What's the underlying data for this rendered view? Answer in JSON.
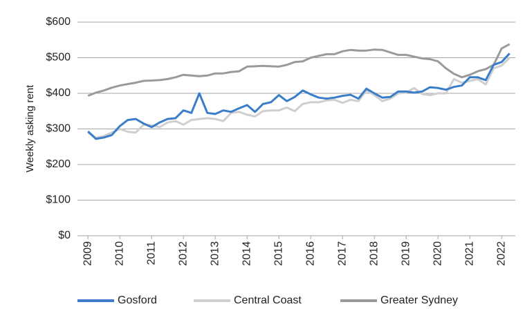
{
  "chart_data": {
    "type": "line",
    "y_label": "Weekly asking rent",
    "x": [
      2009,
      2009.25,
      2009.5,
      2009.75,
      2010,
      2010.25,
      2010.5,
      2010.75,
      2011,
      2011.25,
      2011.5,
      2011.75,
      2012,
      2012.25,
      2012.5,
      2012.75,
      2013,
      2013.25,
      2013.5,
      2013.75,
      2014,
      2014.25,
      2014.5,
      2014.75,
      2015,
      2015.25,
      2015.5,
      2015.75,
      2016,
      2016.25,
      2016.5,
      2016.75,
      2017,
      2017.25,
      2017.5,
      2017.75,
      2018,
      2018.25,
      2018.5,
      2018.75,
      2019,
      2019.25,
      2019.5,
      2019.75,
      2020,
      2020.25,
      2020.5,
      2020.75,
      2021,
      2021.25,
      2021.5,
      2021.75,
      2022,
      2022.25
    ],
    "series": [
      {
        "name": "Gosford",
        "color": "#3a7dc9",
        "values": [
          293,
          272,
          276,
          283,
          308,
          325,
          328,
          315,
          305,
          318,
          328,
          330,
          352,
          345,
          400,
          345,
          342,
          352,
          348,
          358,
          367,
          348,
          370,
          375,
          395,
          378,
          390,
          408,
          397,
          388,
          385,
          388,
          393,
          396,
          385,
          413,
          400,
          388,
          390,
          405,
          405,
          402,
          405,
          417,
          415,
          410,
          418,
          422,
          445,
          445,
          437,
          480,
          488,
          512
        ]
      },
      {
        "name": "Central Coast",
        "color": "#cfcfcf",
        "values": [
          290,
          275,
          280,
          290,
          300,
          292,
          290,
          312,
          310,
          305,
          318,
          322,
          312,
          325,
          328,
          330,
          328,
          322,
          345,
          348,
          340,
          335,
          350,
          352,
          352,
          360,
          350,
          370,
          375,
          375,
          380,
          382,
          373,
          382,
          378,
          408,
          395,
          378,
          385,
          400,
          402,
          415,
          398,
          395,
          400,
          400,
          440,
          430,
          435,
          440,
          425,
          470,
          478,
          500
        ]
      },
      {
        "name": "Greater Sydney",
        "color": "#9a9a9a",
        "values": [
          393,
          402,
          408,
          416,
          422,
          426,
          430,
          435,
          436,
          437,
          440,
          445,
          452,
          450,
          448,
          450,
          456,
          456,
          460,
          462,
          475,
          476,
          477,
          476,
          475,
          480,
          488,
          490,
          500,
          505,
          510,
          510,
          518,
          522,
          520,
          520,
          523,
          522,
          515,
          508,
          508,
          503,
          498,
          496,
          490,
          470,
          455,
          445,
          452,
          462,
          468,
          480,
          526,
          538
        ]
      }
    ],
    "xlim": [
      2008.67,
      2022.43
    ],
    "xticks": [
      2009,
      2010,
      2011,
      2012,
      2013,
      2014,
      2015,
      2016,
      2017,
      2018,
      2019,
      2020,
      2021,
      2022
    ],
    "ylim": [
      0,
      600
    ],
    "yticks": [
      {
        "value": 0,
        "label": "$0"
      },
      {
        "value": 100,
        "label": "$100"
      },
      {
        "value": 200,
        "label": "$200"
      },
      {
        "value": 300,
        "label": "$300"
      },
      {
        "value": 400,
        "label": "$400"
      },
      {
        "value": 500,
        "label": "$500"
      },
      {
        "value": 600,
        "label": "$600"
      }
    ],
    "grid": true,
    "legend": "bottom"
  }
}
